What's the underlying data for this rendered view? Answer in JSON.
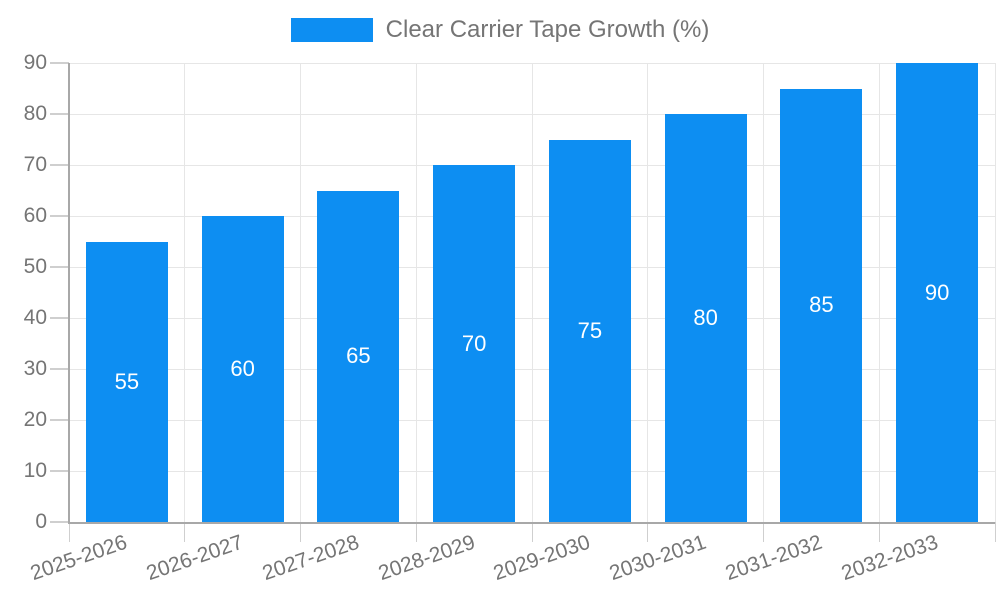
{
  "chart_data": {
    "type": "bar",
    "legend_label": "Clear Carrier Tape Growth (%)",
    "legend_position": "top-center",
    "categories": [
      "2025-2026",
      "2026-2027",
      "2027-2028",
      "2028-2029",
      "2029-2030",
      "2030-2031",
      "2031-2032",
      "2032-2033"
    ],
    "values": [
      55,
      60,
      65,
      70,
      75,
      80,
      85,
      90
    ],
    "y_ticks": [
      0,
      10,
      20,
      30,
      40,
      50,
      60,
      70,
      80,
      90
    ],
    "ylim": [
      0,
      90
    ],
    "grid": true,
    "bar_labels_inside": true,
    "colors": {
      "bar": "#0d8ef2",
      "bar_label": "#ffffff",
      "axis_text": "#757575",
      "grid": "#e6e6e6",
      "axis_line": "#a8a8a8",
      "tick": "#cfcfcf"
    }
  }
}
